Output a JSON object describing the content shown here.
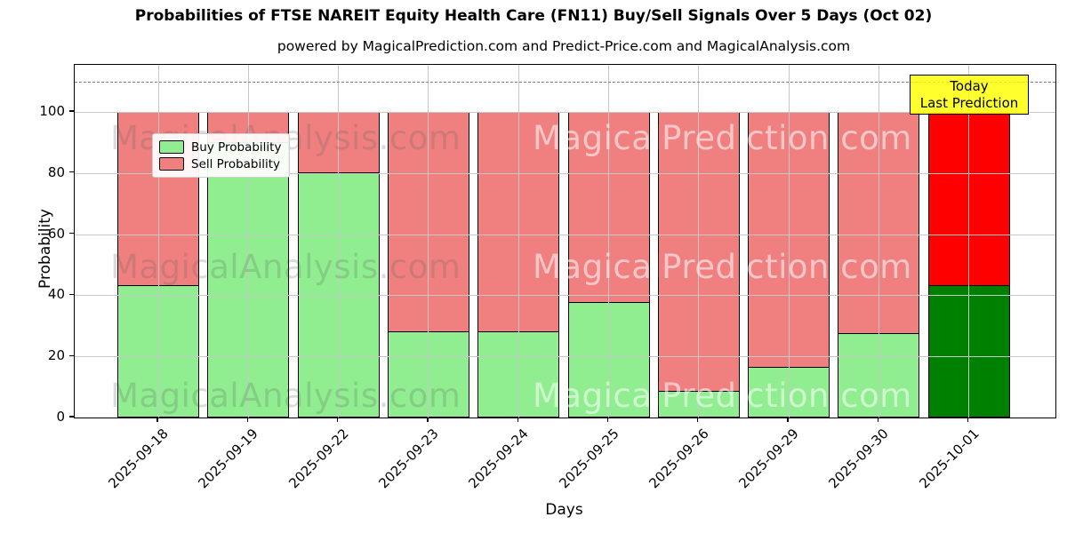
{
  "title": "Probabilities of FTSE NAREIT Equity Health Care (FN11) Buy/Sell Signals Over 5 Days (Oct 02)",
  "subtitle": "powered by MagicalPrediction.com and Predict-Price.com and MagicalAnalysis.com",
  "watermarks": {
    "left_text": "MagicalAnalysis.com",
    "right_text": "MagicalPrediction.com"
  },
  "annotation_box": {
    "line1": "Today",
    "line2": "Last Prediction",
    "bg_color": "#ffff00"
  },
  "legend": [
    {
      "label": "Buy Probability",
      "color": "#90ee90"
    },
    {
      "label": "Sell Probability",
      "color": "#f08080"
    }
  ],
  "chart_data": {
    "type": "bar",
    "stacked": true,
    "title": "Probabilities of FTSE NAREIT Equity Health Care (FN11) Buy/Sell Signals Over 5 Days (Oct 02)",
    "xlabel": "Days",
    "ylabel": "Probability",
    "categories": [
      "2025-09-18",
      "2025-09-19",
      "2025-09-22",
      "2025-09-23",
      "2025-09-24",
      "2025-09-25",
      "2025-09-26",
      "2025-09-29",
      "2025-09-30",
      "2025-10-01"
    ],
    "series": [
      {
        "name": "Buy Probability",
        "color": "#90ee90",
        "today_color": "#008000",
        "values": [
          43.6,
          90.3,
          80.4,
          28.5,
          28.5,
          38.0,
          9.0,
          16.7,
          27.9,
          43.6
        ]
      },
      {
        "name": "Sell Probability",
        "color": "#f08080",
        "today_color": "#ff0000",
        "values": [
          56.4,
          9.7,
          19.6,
          71.5,
          71.5,
          62.0,
          91.0,
          83.3,
          72.1,
          56.4
        ]
      }
    ],
    "today_index": 9,
    "ylim": [
      0,
      115.4
    ],
    "yticks": [
      0,
      20,
      40,
      60,
      80,
      100
    ],
    "dashed_line_y": 110,
    "grid": true,
    "edge_color": "#000000",
    "legend_position": "upper left"
  }
}
